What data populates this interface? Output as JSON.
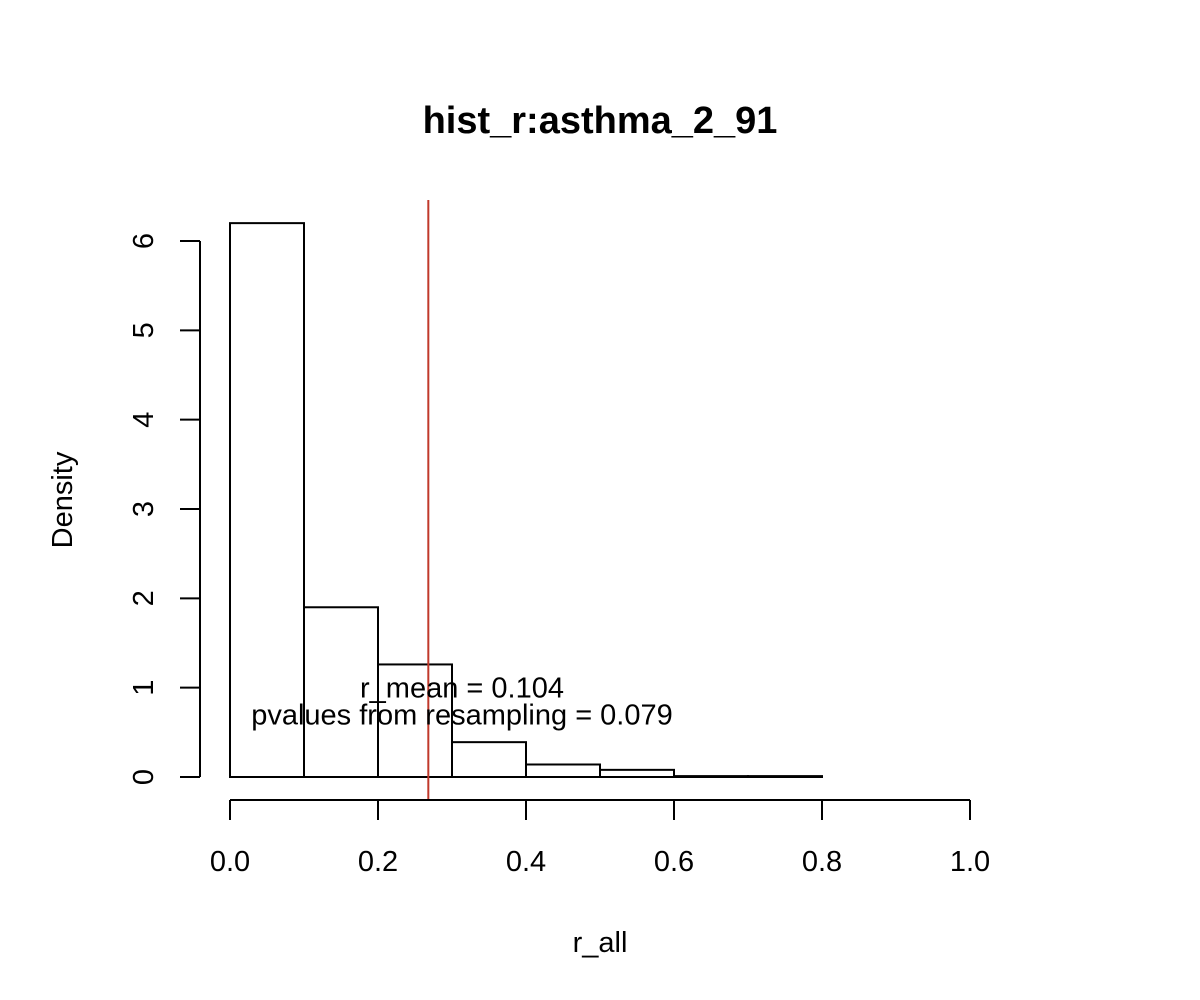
{
  "chart_data": {
    "type": "bar",
    "subtype": "histogram",
    "title": "hist_r:asthma_2_91",
    "xlabel": "r_all",
    "ylabel": "Density",
    "xlim": [
      0,
      1
    ],
    "ylim": [
      0,
      6.3
    ],
    "x_ticks": [
      0.0,
      0.2,
      0.4,
      0.6,
      0.8,
      1.0
    ],
    "x_tick_labels": [
      "0.0",
      "0.2",
      "0.4",
      "0.6",
      "0.8",
      "1.0"
    ],
    "y_ticks": [
      0,
      1,
      2,
      3,
      4,
      5,
      6
    ],
    "y_tick_labels": [
      "0",
      "1",
      "2",
      "3",
      "4",
      "5",
      "6"
    ],
    "bins": [
      {
        "start": 0.0,
        "end": 0.1,
        "density": 6.2
      },
      {
        "start": 0.1,
        "end": 0.2,
        "density": 1.9
      },
      {
        "start": 0.2,
        "end": 0.3,
        "density": 1.26
      },
      {
        "start": 0.3,
        "end": 0.4,
        "density": 0.39
      },
      {
        "start": 0.4,
        "end": 0.5,
        "density": 0.14
      },
      {
        "start": 0.5,
        "end": 0.6,
        "density": 0.08
      },
      {
        "start": 0.6,
        "end": 0.7,
        "density": 0.01
      },
      {
        "start": 0.7,
        "end": 0.8,
        "density": 0.01
      }
    ],
    "vline": {
      "x": 0.268,
      "color": "#c0392b"
    },
    "annotations": [
      {
        "text": "r_mean = 0.104",
        "x": 0.3,
        "y": 1.0
      },
      {
        "text": "pvalues from resampling = 0.079",
        "x": 0.3,
        "y": 0.7
      }
    ],
    "grid": false,
    "legend": "none"
  }
}
